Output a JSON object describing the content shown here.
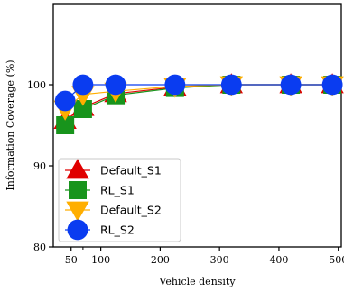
{
  "chart_data": {
    "type": "line",
    "xlabel": "Vehicle density",
    "ylabel": "Information Coverage (%)",
    "xlim": [
      20,
      505
    ],
    "ylim": [
      80,
      110
    ],
    "xticks": [
      50,
      100,
      200,
      300,
      400,
      500
    ],
    "xticks_minor": [
      70
    ],
    "yticks": [
      80,
      90,
      100
    ],
    "grid": false,
    "legend_position": "lower-left",
    "series": [
      {
        "name": "Default_S1",
        "color": "#e00000",
        "marker": "triangle-up",
        "x": [
          40,
          70,
          125,
          225,
          320,
          420,
          490
        ],
        "y": [
          95.6,
          97.2,
          98.9,
          99.7,
          100,
          100,
          100
        ]
      },
      {
        "name": "RL_S1",
        "color": "#18941c",
        "marker": "square",
        "x": [
          40,
          70,
          125,
          225,
          320,
          420,
          490
        ],
        "y": [
          95.0,
          97.0,
          98.7,
          99.6,
          100,
          100,
          100
        ]
      },
      {
        "name": "Default_S2",
        "color": "#ffae00",
        "marker": "triangle-down",
        "x": [
          40,
          70,
          125,
          225,
          320,
          420,
          490
        ],
        "y": [
          97.0,
          98.8,
          99.2,
          99.8,
          100,
          100,
          100
        ]
      },
      {
        "name": "RL_S2",
        "color": "#0a3cf0",
        "marker": "circle",
        "x": [
          40,
          70,
          125,
          225,
          320,
          420,
          490
        ],
        "y": [
          98.0,
          100,
          100,
          100,
          100,
          100,
          100
        ]
      }
    ]
  }
}
